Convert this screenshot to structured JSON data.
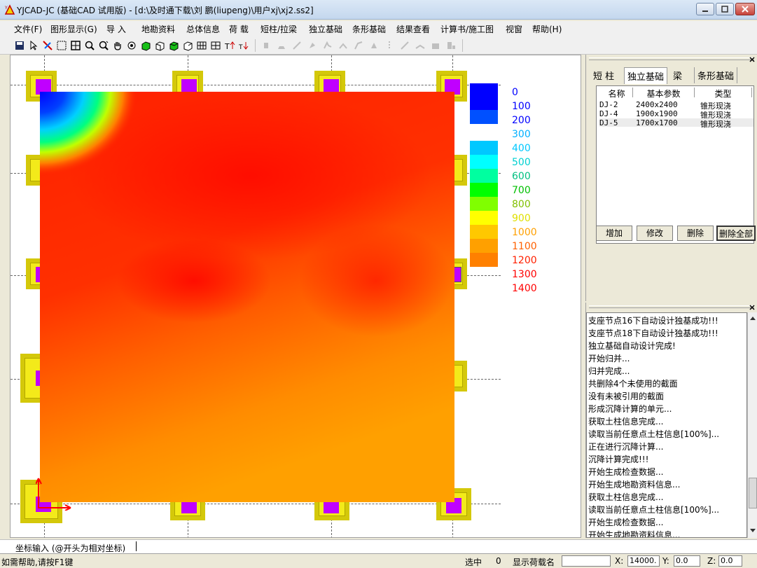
{
  "window": {
    "title": "YJCAD-JC (基础CAD 试用版) - [d:\\及时通下载\\刘  鹏(liupeng)\\用户xj\\xj2.ss2]"
  },
  "menu": [
    "文件(F)",
    "图形显示(G)",
    "导  入",
    "地勘资料",
    "总体信息",
    "荷  载",
    "短柱/拉梁",
    "独立基础",
    "条形基础",
    "结果查看",
    "计算书/施工图",
    "视窗",
    "帮助(H)"
  ],
  "legend": {
    "labels": [
      "0",
      "100",
      "200",
      "300",
      "400",
      "500",
      "600",
      "700",
      "800",
      "900",
      "1000",
      "1100",
      "1200",
      "1300",
      "1400"
    ],
    "colors": [
      "#0000ff",
      "#0050ff",
      "#ffffff",
      "#00c8ff",
      "#00ffff",
      "#00ffa0",
      "#00ff00",
      "#80ff00",
      "#ffff00",
      "#ffc800",
      "#ffa000",
      "#ff8000",
      "#ffffff",
      "#ffffff",
      "#ffffff"
    ],
    "label_colors": [
      "#0000ff",
      "#0000ff",
      "#0000ff",
      "#00b0ff",
      "#00c8ff",
      "#00d0d0",
      "#00c080",
      "#00c000",
      "#80c000",
      "#e0e000",
      "#ffa000",
      "#ff6000",
      "#ff2000",
      "#ff0000",
      "#ff0000"
    ]
  },
  "panel": {
    "tabs": [
      "短  柱",
      "独立基础",
      "梁",
      "条形基础"
    ],
    "active_tab": "独立基础",
    "columns": [
      "名称",
      "基本参数",
      "类型"
    ],
    "rows": [
      {
        "name": "DJ-2",
        "param": "2400x2400",
        "type": "锥形现浇"
      },
      {
        "name": "DJ-4",
        "param": "1900x1900",
        "type": "锥形现浇"
      },
      {
        "name": "DJ-5",
        "param": "1700x1700",
        "type": "锥形现浇"
      }
    ],
    "buttons": [
      "增加",
      "修改",
      "删除",
      "删除全部"
    ]
  },
  "log": [
    "支座节点16下自动设计独基成功!!!",
    "支座节点18下自动设计独基成功!!!",
    "独立基础自动设计完成!",
    "开始归并...",
    "归并完成...",
    "共删除4个未使用的截面",
    "没有未被引用的截面",
    "形成沉降计算的单元...",
    "获取土柱信息完成...",
    "读取当前任意点土柱信息[100%]...",
    "正在进行沉降计算...",
    "沉降计算完成!!!",
    "开始生成检查数据...",
    "开始生成地勘资料信息...",
    "获取土柱信息完成...",
    "读取当前任意点土柱信息[100%]...",
    "开始生成检查数据...",
    "开始生成地勘资料信息..."
  ],
  "cmd": {
    "prompt": "坐标输入 (@开头为相对坐标)"
  },
  "status": {
    "help": "如需帮助,请按F1键",
    "selected_label": "选中",
    "selected_count": "0",
    "show_load_label": "显示荷载名",
    "x_label": "X:",
    "x_value": "14000.",
    "y_label": "Y:",
    "y_value": "0.0",
    "z_label": "Z:",
    "z_value": "0.0"
  }
}
